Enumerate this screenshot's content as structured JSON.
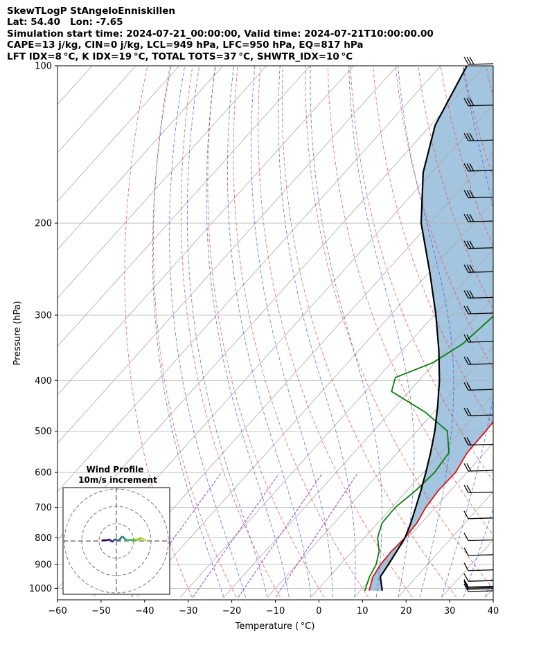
{
  "header": {
    "line1": "SkewTLogP StAngeloEnniskillen",
    "line2": "Lat: 54.40   Lon: -7.65",
    "line3": "Simulation start time: 2024-07-21_00:00:00, Valid time: 2024-07-21T10:00:00.00",
    "line4": "CAPE=13 j/kg, CIN=0 j/kg, LCL=949 hPa, LFC=950 hPa, EQ=817 hPa",
    "line5": "LFT IDX=8 °C, K IDX=19 °C, TOTAL TOTS=37 °C, SHWTR_IDX=10 °C"
  },
  "chart_data": {
    "type": "line",
    "xlabel": "Temperature ( °C)",
    "ylabel": "Pressure (hPa)",
    "xlim": [
      -60,
      40
    ],
    "ylim_hpa": [
      1040,
      100
    ],
    "pressure_scale": "log",
    "x_ticks": [
      "−60",
      "−50",
      "−40",
      "−30",
      "−20",
      "−10",
      "0",
      "10",
      "20",
      "30",
      "40"
    ],
    "x_tick_values": [
      -60,
      -50,
      -40,
      -30,
      -20,
      -10,
      0,
      10,
      20,
      30,
      40
    ],
    "y_ticks": [
      "100",
      "200",
      "300",
      "400",
      "500",
      "600",
      "700",
      "800",
      "900",
      "1000"
    ],
    "y_tick_values": [
      100,
      200,
      300,
      400,
      500,
      600,
      700,
      800,
      900,
      1000
    ],
    "series": [
      {
        "role": "temperature",
        "color": "#e01010",
        "points_p_T": [
          [
            1010,
            12
          ],
          [
            950,
            10
          ],
          [
            900,
            9.2
          ],
          [
            850,
            9
          ],
          [
            800,
            9.3
          ],
          [
            750,
            9
          ],
          [
            700,
            7.8
          ],
          [
            650,
            7.2
          ],
          [
            600,
            7.4
          ],
          [
            550,
            6
          ],
          [
            500,
            5.8
          ],
          [
            450,
            5.2
          ],
          [
            400,
            4.2
          ],
          [
            350,
            2.3
          ],
          [
            300,
            0
          ],
          [
            250,
            -2
          ],
          [
            200,
            -2
          ],
          [
            180,
            -1.2
          ],
          [
            160,
            -1.7
          ],
          [
            140,
            -4
          ],
          [
            120,
            -7
          ],
          [
            100,
            -10
          ]
        ]
      },
      {
        "role": "dewpoint",
        "color": "#0a7d0a",
        "points_p_T": [
          [
            1010,
            11
          ],
          [
            950,
            9.2
          ],
          [
            900,
            8.2
          ],
          [
            850,
            6.2
          ],
          [
            800,
            3
          ],
          [
            750,
            1
          ],
          [
            700,
            0.8
          ],
          [
            650,
            2
          ],
          [
            600,
            2.6
          ],
          [
            550,
            1.8
          ],
          [
            500,
            -3
          ],
          [
            460,
            -12
          ],
          [
            420,
            -24
          ],
          [
            395,
            -26
          ],
          [
            370,
            -20.5
          ],
          [
            340,
            -17.5
          ],
          [
            310,
            -16.5
          ],
          [
            280,
            -15.5
          ],
          [
            250,
            -14.5
          ],
          [
            225,
            -15.5
          ],
          [
            210,
            -20
          ],
          [
            200,
            -25
          ],
          [
            185,
            -30
          ],
          [
            170,
            -31
          ],
          [
            155,
            -28
          ],
          [
            140,
            -27.5
          ],
          [
            100,
            -30.2
          ]
        ]
      },
      {
        "role": "parcel",
        "color": "#000000",
        "points_p_T": [
          [
            1010,
            15
          ],
          [
            950,
            11.7
          ],
          [
            900,
            11
          ],
          [
            850,
            10.2
          ],
          [
            800,
            9.3
          ],
          [
            750,
            7.6
          ],
          [
            700,
            5.5
          ],
          [
            650,
            3.2
          ],
          [
            600,
            0.6
          ],
          [
            550,
            -2.4
          ],
          [
            500,
            -5.9
          ],
          [
            450,
            -10.2
          ],
          [
            400,
            -15.3
          ],
          [
            350,
            -21.7
          ],
          [
            300,
            -29.6
          ],
          [
            250,
            -39.5
          ],
          [
            200,
            -52
          ],
          [
            160,
            -62
          ],
          [
            130,
            -69
          ],
          [
            100,
            -74
          ]
        ]
      }
    ],
    "wind_barbs": {
      "levels_hpa": [
        100,
        120,
        140,
        160,
        180,
        200,
        225,
        250,
        280,
        300,
        340,
        375,
        420,
        470,
        535,
        600,
        660,
        740,
        815,
        870,
        930,
        975,
        1000,
        1005,
        1010,
        1020
      ],
      "note": "barbs drawn in right margin"
    },
    "hodograph": {
      "title": "Wind Profile",
      "subtitle": "10m/s increment",
      "rings_ms": [
        10,
        20,
        30
      ],
      "points_uv": [
        [
          9,
          0.7
        ],
        [
          11,
          1
        ],
        [
          12.5,
          1.4
        ],
        [
          13.8,
          1.8
        ],
        [
          14.5,
          1.5
        ],
        [
          15.3,
          1.1
        ],
        [
          16,
          0.5
        ],
        [
          16.8,
          0.2
        ],
        [
          15.8,
          0.8
        ],
        [
          14.5,
          1.6
        ],
        [
          13.4,
          1.1
        ],
        [
          12.2,
          0.6
        ],
        [
          11,
          0.6
        ],
        [
          9.8,
          0.8
        ],
        [
          8.8,
          0.5
        ],
        [
          7.5,
          0.6
        ],
        [
          6.2,
          0.5
        ],
        [
          5.3,
          0.9
        ],
        [
          4.6,
          1.5
        ],
        [
          4,
          2.2
        ],
        [
          3.2,
          2.4
        ],
        [
          2.6,
          1.7
        ],
        [
          2.2,
          1.1
        ],
        [
          1.6,
          0.4
        ],
        [
          1,
          0.3
        ],
        [
          0.2,
          0.6
        ],
        [
          -0.6,
          0.9
        ],
        [
          -1.2,
          0.6
        ],
        [
          -1.8,
          -0.1
        ],
        [
          -2.4,
          -0.4
        ],
        [
          -3,
          0.1
        ],
        [
          -3.6,
          0.6
        ],
        [
          -4.2,
          0.8
        ],
        [
          -5,
          0.5
        ],
        [
          -6,
          0.4
        ],
        [
          -7.2,
          0.5
        ],
        [
          -8,
          0.3
        ]
      ]
    }
  }
}
